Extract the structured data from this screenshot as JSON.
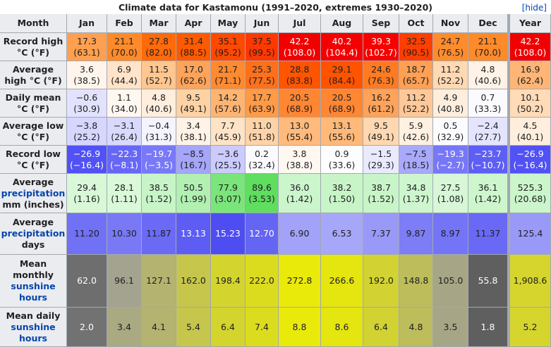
{
  "title": "Climate data for Kastamonu (1991–2020, extremes 1930–2020)",
  "toggle": "[hide]",
  "header": [
    "Month",
    "Jan",
    "Feb",
    "Mar",
    "Apr",
    "May",
    "Jun",
    "Jul",
    "Aug",
    "Sep",
    "Oct",
    "Nov",
    "Dec",
    "Year"
  ],
  "rows": [
    {
      "label": [
        "Record high",
        "°C (°F)"
      ],
      "cells": [
        [
          "17.3",
          "(63.1)"
        ],
        [
          "21.1",
          "(70.0)"
        ],
        [
          "27.8",
          "(82.0)"
        ],
        [
          "31.4",
          "(88.5)"
        ],
        [
          "35.1",
          "(95.2)"
        ],
        [
          "37.5",
          "(99.5)"
        ],
        [
          "42.2",
          "(108.0)"
        ],
        [
          "40.2",
          "(104.4)"
        ],
        [
          "39.3",
          "(102.7)"
        ],
        [
          "32.5",
          "(90.5)"
        ],
        [
          "24.7",
          "(76.5)"
        ],
        [
          "21.1",
          "(70.0)"
        ],
        [
          "42.2",
          "(108.0)"
        ]
      ]
    },
    {
      "label": [
        "Average",
        "high °C (°F)"
      ],
      "cells": [
        [
          "3.6",
          "(38.5)"
        ],
        [
          "6.9",
          "(44.4)"
        ],
        [
          "11.5",
          "(52.7)"
        ],
        [
          "17.0",
          "(62.6)"
        ],
        [
          "21.7",
          "(71.1)"
        ],
        [
          "25.3",
          "(77.5)"
        ],
        [
          "28.8",
          "(83.8)"
        ],
        [
          "29.1",
          "(84.4)"
        ],
        [
          "24.6",
          "(76.3)"
        ],
        [
          "18.7",
          "(65.7)"
        ],
        [
          "11.2",
          "(52.2)"
        ],
        [
          "4.8",
          "(40.6)"
        ],
        [
          "16.9",
          "(62.4)"
        ]
      ]
    },
    {
      "label": [
        "Daily mean",
        "°C (°F)"
      ],
      "cells": [
        [
          "−0.6",
          "(30.9)"
        ],
        [
          "1.1",
          "(34.0)"
        ],
        [
          "4.8",
          "(40.6)"
        ],
        [
          "9.5",
          "(49.1)"
        ],
        [
          "14.2",
          "(57.6)"
        ],
        [
          "17.7",
          "(63.9)"
        ],
        [
          "20.5",
          "(68.9)"
        ],
        [
          "20.5",
          "(68.9)"
        ],
        [
          "16.2",
          "(61.2)"
        ],
        [
          "11.2",
          "(52.2)"
        ],
        [
          "4.9",
          "(40.8)"
        ],
        [
          "0.7",
          "(33.3)"
        ],
        [
          "10.1",
          "(50.2)"
        ]
      ]
    },
    {
      "label": [
        "Average low",
        "°C (°F)"
      ],
      "cells": [
        [
          "−3.8",
          "(25.2)"
        ],
        [
          "−3.1",
          "(26.4)"
        ],
        [
          "−0.4",
          "(31.3)"
        ],
        [
          "3.4",
          "(38.1)"
        ],
        [
          "7.7",
          "(45.9)"
        ],
        [
          "11.0",
          "(51.8)"
        ],
        [
          "13.0",
          "(55.4)"
        ],
        [
          "13.1",
          "(55.6)"
        ],
        [
          "9.5",
          "(49.1)"
        ],
        [
          "5.9",
          "(42.6)"
        ],
        [
          "0.5",
          "(32.9)"
        ],
        [
          "−2.4",
          "(27.7)"
        ],
        [
          "4.5",
          "(40.1)"
        ]
      ]
    },
    {
      "label": [
        "Record low",
        "°C (°F)"
      ],
      "cells": [
        [
          "−26.9",
          "(−16.4)"
        ],
        [
          "−22.3",
          "(−8.1)"
        ],
        [
          "−19.7",
          "(−3.5)"
        ],
        [
          "−8.5",
          "(16.7)"
        ],
        [
          "−3.6",
          "(25.5)"
        ],
        [
          "0.2",
          "(32.4)"
        ],
        [
          "3.8",
          "(38.8)"
        ],
        [
          "0.9",
          "(33.6)"
        ],
        [
          "−1.5",
          "(29.3)"
        ],
        [
          "−7.5",
          "(18.5)"
        ],
        [
          "−19.3",
          "(−2.7)"
        ],
        [
          "−23.7",
          "(−10.7)"
        ],
        [
          "−26.9",
          "(−16.4)"
        ]
      ]
    },
    {
      "label": [
        "Average",
        "precipitation",
        "mm (inches)"
      ],
      "cells": [
        [
          "29.4",
          "(1.16)"
        ],
        [
          "28.1",
          "(1.11)"
        ],
        [
          "38.5",
          "(1.52)"
        ],
        [
          "50.5",
          "(1.99)"
        ],
        [
          "77.9",
          "(3.07)"
        ],
        [
          "89.6",
          "(3.53)"
        ],
        [
          "36.0",
          "(1.42)"
        ],
        [
          "38.2",
          "(1.50)"
        ],
        [
          "38.7",
          "(1.52)"
        ],
        [
          "34.8",
          "(1.37)"
        ],
        [
          "27.5",
          "(1.08)"
        ],
        [
          "36.1",
          "(1.42)"
        ],
        [
          "525.3",
          "(20.68)"
        ]
      ]
    },
    {
      "label": [
        "Average",
        "precipitation",
        "days"
      ],
      "cells": [
        [
          "11.20"
        ],
        [
          "10.30"
        ],
        [
          "11.87"
        ],
        [
          "13.13"
        ],
        [
          "15.23"
        ],
        [
          "12.70"
        ],
        [
          "6.90"
        ],
        [
          "6.53"
        ],
        [
          "7.37"
        ],
        [
          "9.87"
        ],
        [
          "8.97"
        ],
        [
          "11.37"
        ],
        [
          "125.4"
        ]
      ]
    },
    {
      "label": [
        "Mean",
        "monthly",
        "sunshine",
        "hours"
      ],
      "cells": [
        [
          "62.0"
        ],
        [
          "96.1"
        ],
        [
          "127.1"
        ],
        [
          "162.0"
        ],
        [
          "198.4"
        ],
        [
          "222.0"
        ],
        [
          "272.8"
        ],
        [
          "266.6"
        ],
        [
          "192.0"
        ],
        [
          "148.8"
        ],
        [
          "105.0"
        ],
        [
          "55.8"
        ],
        [
          "1,908.6"
        ]
      ]
    },
    {
      "label": [
        "Mean daily",
        "sunshine",
        "hours"
      ],
      "cells": [
        [
          "2.0"
        ],
        [
          "3.4"
        ],
        [
          "4.1"
        ],
        [
          "5.4"
        ],
        [
          "6.4"
        ],
        [
          "7.4"
        ],
        [
          "8.8"
        ],
        [
          "8.6"
        ],
        [
          "6.4"
        ],
        [
          "4.8"
        ],
        [
          "3.5"
        ],
        [
          "1.8"
        ],
        [
          "5.2"
        ]
      ]
    }
  ]
}
